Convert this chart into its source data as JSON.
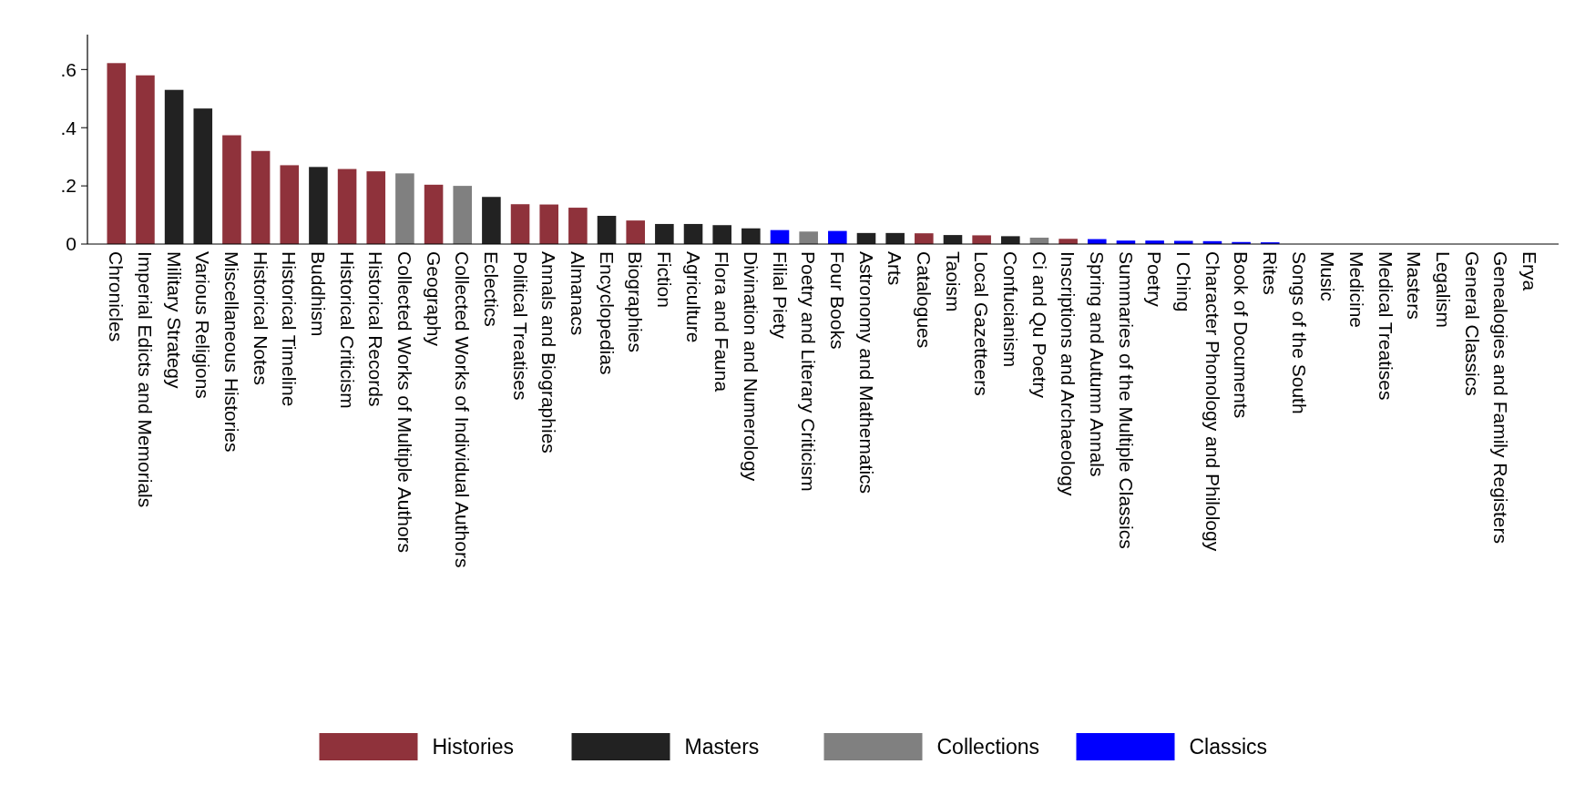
{
  "chart_data": {
    "type": "bar",
    "legend": "bottom",
    "grid": false,
    "categories": [
      "Chronicles",
      "Imperial Edicts and Memorials",
      "Military Strategy",
      "Various Religions",
      "Miscellaneous Histories",
      "Historical Notes",
      "Historical Timeline",
      "Buddhism",
      "Historical Criticism",
      "Historical Records",
      "Collected Works of Multiple Authors",
      "Geography",
      "Collected Works of Individual Authors",
      "Eclectics",
      "Political Treatises",
      "Annals and Biographies",
      "Almanacs",
      "Encyclopedias",
      "Biographies",
      "Fiction",
      "Agriculture",
      "Flora and Fauna",
      "Divination and Numerology",
      "Filial Piety",
      "Poetry and Literary Criticism",
      "Four Books",
      "Astronomy and Mathematics",
      "Arts",
      "Catalogues",
      "Taoism",
      "Local Gazetteers",
      "Confucianism",
      "Ci and Qu Poetry",
      "Inscriptions and Archaeology",
      "Spring and Autumn Annals",
      "Summaries of the Multiple Classics",
      "Poetry",
      "I Ching",
      "Character Phonology and Philology",
      "Book of Documents",
      "Rites",
      "Songs of the South",
      "Music",
      "Medicine",
      "Medical Treatises",
      "Masters",
      "Legalism",
      "General Classics",
      "Genealogies and Family Registers",
      "Erya"
    ],
    "ylim": [
      0,
      0.72
    ],
    "yticks": [
      {
        "value": 0,
        "label": "0"
      },
      {
        "value": 0.2,
        "label": ".2"
      },
      {
        "value": 0.4,
        "label": ".4"
      },
      {
        "value": 0.6,
        "label": ".6"
      }
    ],
    "series": [
      {
        "name": "Histories",
        "color": "#8f323b",
        "values": [
          0.622,
          0.58,
          null,
          null,
          0.374,
          0.32,
          0.271,
          null,
          0.258,
          0.25,
          null,
          0.204,
          null,
          null,
          0.137,
          0.136,
          0.125,
          null,
          0.081,
          null,
          null,
          null,
          null,
          null,
          null,
          null,
          null,
          null,
          0.037,
          null,
          0.03,
          null,
          null,
          0.018,
          null,
          null,
          null,
          null,
          null,
          null,
          null,
          null,
          null,
          null,
          null,
          null,
          null,
          null,
          0,
          null
        ]
      },
      {
        "name": "Masters",
        "color": "#222222",
        "values": [
          null,
          null,
          0.53,
          0.466,
          null,
          null,
          null,
          0.265,
          null,
          null,
          null,
          null,
          null,
          0.162,
          null,
          null,
          null,
          0.097,
          null,
          0.069,
          0.069,
          0.065,
          0.054,
          null,
          null,
          null,
          0.038,
          0.038,
          null,
          0.031,
          null,
          0.027,
          null,
          null,
          null,
          null,
          null,
          null,
          null,
          null,
          null,
          null,
          null,
          0,
          0,
          0,
          0,
          null,
          null,
          null
        ]
      },
      {
        "name": "Collections",
        "color": "#808080",
        "values": [
          null,
          null,
          null,
          null,
          null,
          null,
          null,
          null,
          null,
          null,
          0.243,
          null,
          0.2,
          null,
          null,
          null,
          null,
          null,
          null,
          null,
          null,
          null,
          null,
          null,
          0.043,
          null,
          null,
          null,
          null,
          null,
          null,
          null,
          0.022,
          null,
          null,
          null,
          null,
          null,
          null,
          null,
          null,
          0,
          null,
          null,
          null,
          null,
          null,
          null,
          null,
          null
        ]
      },
      {
        "name": "Classics",
        "color": "#0000ff",
        "values": [
          null,
          null,
          null,
          null,
          null,
          null,
          null,
          null,
          null,
          null,
          null,
          null,
          null,
          null,
          null,
          null,
          null,
          null,
          null,
          null,
          null,
          null,
          null,
          0.048,
          null,
          0.045,
          null,
          null,
          null,
          null,
          null,
          null,
          null,
          null,
          0.017,
          0.012,
          0.012,
          0.011,
          0.01,
          0.007,
          0.006,
          null,
          0,
          null,
          null,
          null,
          null,
          0,
          null,
          0
        ]
      }
    ]
  }
}
